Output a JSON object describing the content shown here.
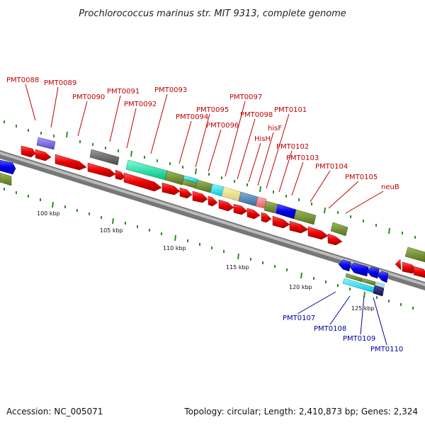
{
  "title": "Prochlorococcus marinus str. MIT 9313, complete genome",
  "footer": {
    "accession": "Accession: NC_005071",
    "summary": "Topology: circular; Length: 2,410,873 bp; Genes: 2,324"
  },
  "scale_labels": [
    "100 kbp",
    "105 kbp",
    "110 kbp",
    "115 kbp",
    "120 kbp",
    "125 kbp"
  ],
  "gene_labels_top": [
    "PMT0088",
    "PMT0089",
    "PMT0090",
    "PMT0091",
    "PMT0092",
    "PMT0093",
    "PMT0094",
    "PMT0095",
    "PMT0096",
    "PMT0097",
    "PMT0098",
    "HisH",
    "hisF",
    "PMT0101",
    "PMT0102",
    "PMT0103",
    "PMT0104",
    "PMT0105",
    "neuB"
  ],
  "gene_labels_bottom": [
    "PMT0107",
    "PMT0108",
    "PMT0109",
    "PMT0110"
  ],
  "colors": {
    "forward_cds": "#ee0000",
    "reverse_cds": "#0000ee",
    "label_forward": "#c00000",
    "label_reverse": "#00009c",
    "backbone": "#888888",
    "tick": "#2e8b20",
    "category_1": "#6b8e23",
    "category_2": "#00e0a0",
    "category_3": "#00e0f0",
    "category_4": "#f0e68c",
    "category_5": "#4682b4",
    "category_6": "#666666",
    "category_7": "#7b68ee",
    "category_8": "#f08080",
    "category_9": "#191970"
  }
}
